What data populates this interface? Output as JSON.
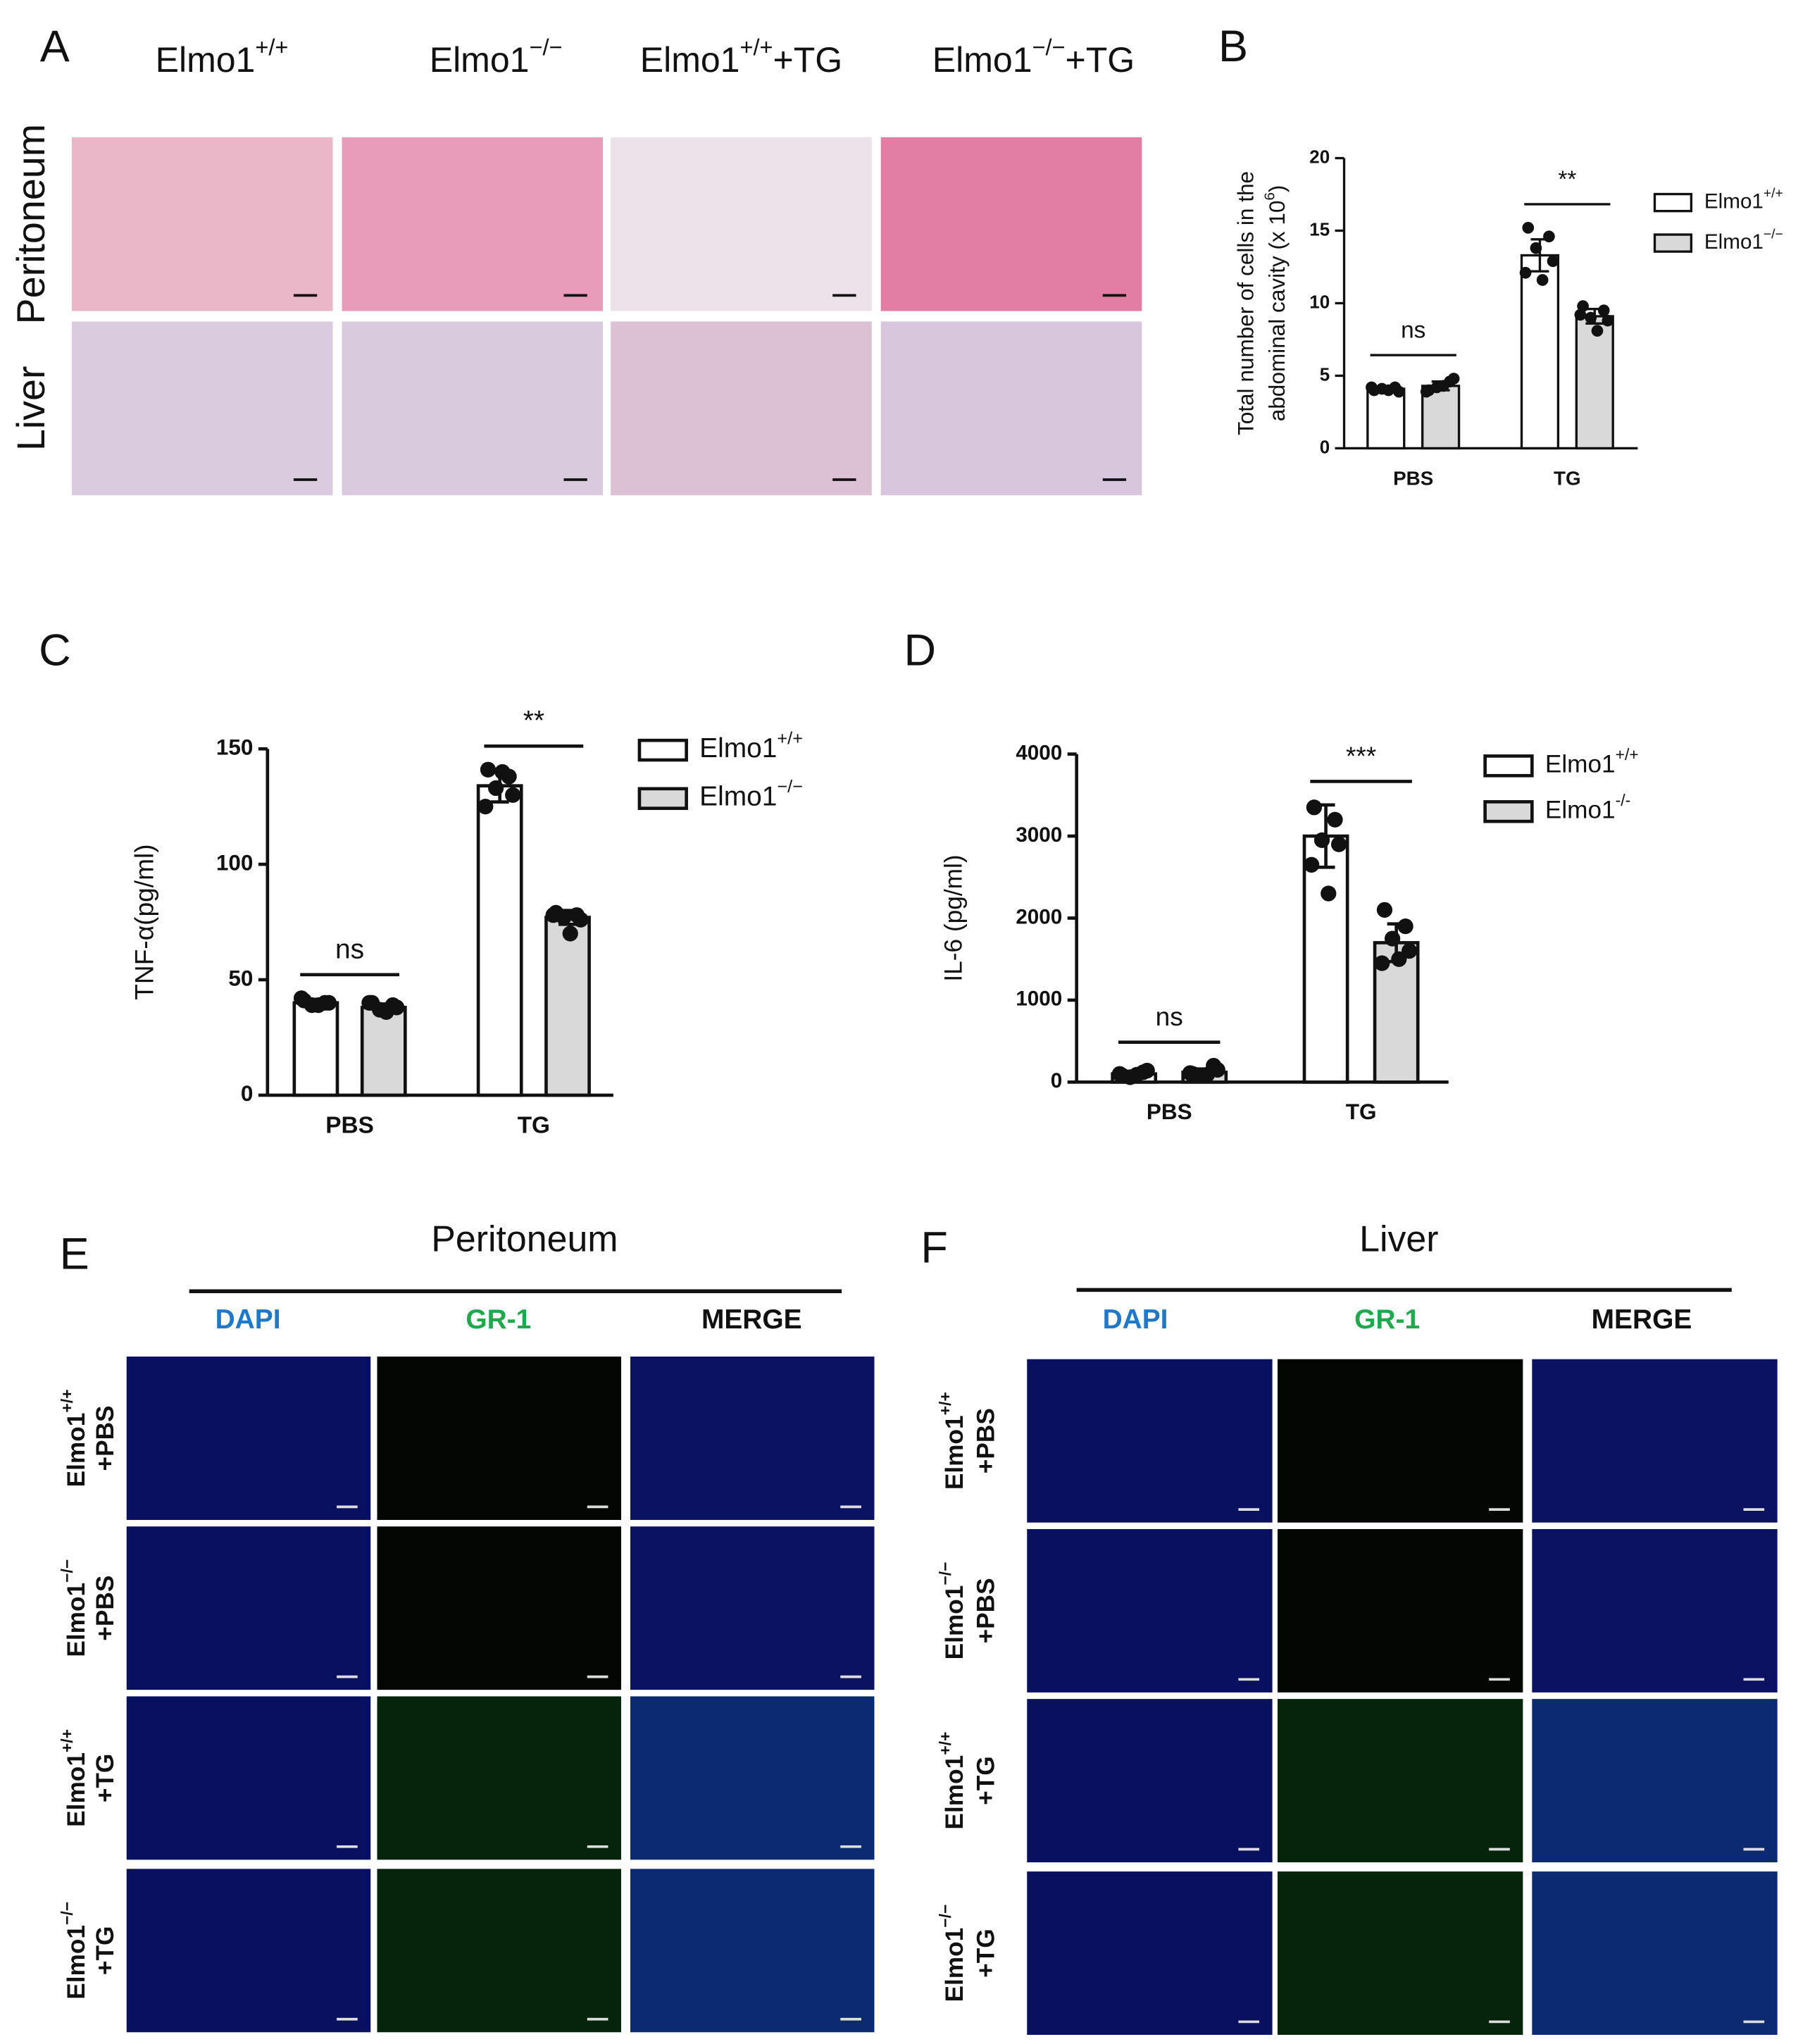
{
  "panel_letters": [
    "A",
    "B",
    "C",
    "D",
    "E",
    "F"
  ],
  "histology": {
    "columns": [
      {
        "name": "Elmo1",
        "sup": "+/+"
      },
      {
        "name": "Elmo1",
        "sup": "−/−"
      },
      {
        "name": "Elmo1",
        "sup": "+/+",
        "suffix": "+TG"
      },
      {
        "name": "Elmo1",
        "sup": "−/−",
        "suffix": "+TG"
      }
    ],
    "rows": [
      "Peritoneum",
      "Liver"
    ]
  },
  "if_panels": [
    {
      "title": "Peritoneum",
      "channels": [
        "DAPI",
        "GR-1",
        "MERGE"
      ],
      "rows": [
        {
          "name": "Elmo1",
          "sup": "+/+",
          "suffix": "+PBS"
        },
        {
          "name": "Elmo1",
          "sup": "−/−",
          "suffix": "+PBS"
        },
        {
          "name": "Elmo1",
          "sup": "+/+",
          "suffix": "+TG"
        },
        {
          "name": "Elmo1",
          "sup": "−/−",
          "suffix": "+TG"
        }
      ]
    },
    {
      "title": "Liver",
      "channels": [
        "DAPI",
        "GR-1",
        "MERGE"
      ],
      "rows": [
        {
          "name": "Elmo1",
          "sup": "+/+",
          "suffix": "+PBS"
        },
        {
          "name": "Elmo1",
          "sup": "−/−",
          "suffix": "+PBS"
        },
        {
          "name": "Elmo1",
          "sup": "+/+",
          "suffix": "+TG"
        },
        {
          "name": "Elmo1",
          "sup": "−/−",
          "suffix": "+TG"
        }
      ]
    }
  ],
  "chart_data": [
    {
      "type": "bar",
      "ylabel": [
        "Total number of cells in the",
        "abdominal cavity (x 10"
      ],
      "ylabel_sup": "6",
      "ylabel_end": ")",
      "categories": [
        "PBS",
        "TG"
      ],
      "annotations": [
        "ns",
        "**"
      ],
      "ylim": [
        0,
        20
      ],
      "yticks": [
        0,
        5,
        10,
        15,
        20
      ],
      "series": [
        {
          "name": "Elmo1",
          "sup": "+/+",
          "color": "#ffffff",
          "values": [
            4.1,
            13.3
          ],
          "errors": [
            0.15,
            1.1
          ],
          "points": [
            [
              4.0,
              4.2,
              4.1,
              3.9,
              4.2,
              4.0
            ],
            [
              15.2,
              14.6,
              13.8,
              12.9,
              12.1,
              11.6
            ]
          ]
        },
        {
          "name": "Elmo1",
          "sup": "−/−",
          "color": "#d9d9d9",
          "values": [
            4.3,
            9.1
          ],
          "errors": [
            0.3,
            0.5
          ],
          "points": [
            [
              4.0,
              4.6,
              4.2,
              4.8,
              3.9,
              4.3
            ],
            [
              9.8,
              9.5,
              9.0,
              8.8,
              9.2,
              8.1
            ]
          ]
        }
      ]
    },
    {
      "type": "bar",
      "ylabel": [
        "TNF-α(pg/ml)"
      ],
      "categories": [
        "PBS",
        "TG"
      ],
      "annotations": [
        "ns",
        "**"
      ],
      "ylim": [
        0,
        150
      ],
      "yticks": [
        0,
        50,
        100,
        150
      ],
      "series": [
        {
          "name": "Elmo1",
          "sup": "+/+",
          "color": "#ffffff",
          "values": [
            40,
            134
          ],
          "errors": [
            1.5,
            7
          ],
          "points": [
            [
              41,
              40,
              39,
              40,
              42,
              39
            ],
            [
              141,
              138,
              133,
              130,
              125,
              140
            ]
          ]
        },
        {
          "name": "Elmo1",
          "sup": "−/−",
          "color": "#d9d9d9",
          "values": [
            38,
            77
          ],
          "errors": [
            1.5,
            3
          ],
          "points": [
            [
              40,
              39,
              37,
              38,
              40,
              36
            ],
            [
              79,
              78,
              77,
              76,
              78,
              70
            ]
          ]
        }
      ]
    },
    {
      "type": "bar",
      "ylabel": [
        "IL-6 (pg/ml)"
      ],
      "categories": [
        "PBS",
        "TG"
      ],
      "annotations": [
        "ns",
        "***"
      ],
      "ylim": [
        0,
        4000
      ],
      "yticks": [
        0,
        1000,
        2000,
        3000,
        4000
      ],
      "series": [
        {
          "name": "Elmo1",
          "sup": "+/+",
          "color": "#ffffff",
          "values": [
            100,
            3000
          ],
          "errors": [
            30,
            380
          ],
          "points": [
            [
              80,
              120,
              60,
              140,
              100,
              90
            ],
            [
              3350,
              3200,
              2950,
              2900,
              2650,
              2300
            ]
          ]
        },
        {
          "name": "Elmo1",
          "sup": "-/-",
          "color": "#d9d9d9",
          "values": [
            120,
            1700
          ],
          "errors": [
            40,
            230
          ],
          "points": [
            [
              100,
              200,
              80,
              150,
              110,
              90
            ],
            [
              2100,
              1900,
              1750,
              1600,
              1450,
              1500
            ]
          ]
        }
      ]
    }
  ]
}
